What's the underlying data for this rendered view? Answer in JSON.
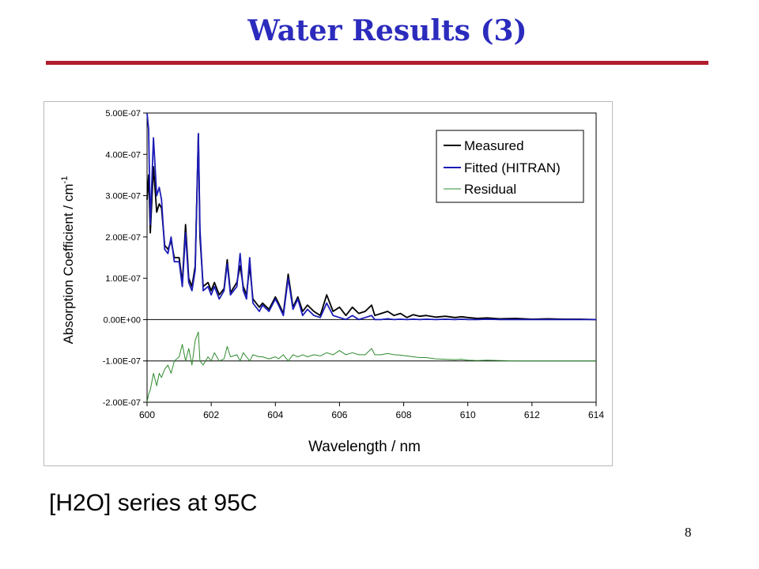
{
  "slide": {
    "title": "Water Results (3)",
    "caption": "[H2O] series at 95C",
    "page_number": "8",
    "colors": {
      "title": "#2b2bbd",
      "rule": "#b01e2d"
    }
  },
  "chart_data": {
    "type": "line",
    "title": "",
    "xlabel": "Wavelength / nm",
    "ylabel": "Absorption Coefficient / cm",
    "ylabel_superscript": "-1",
    "xlim": [
      600,
      614
    ],
    "ylim": [
      -2e-07,
      5e-07
    ],
    "x_ticks": [
      600,
      602,
      604,
      606,
      608,
      610,
      612,
      614
    ],
    "x_tick_labels": [
      "600",
      "602",
      "604",
      "606",
      "608",
      "610",
      "612",
      "614"
    ],
    "y_ticks": [
      5e-07,
      4e-07,
      3e-07,
      2e-07,
      1e-07,
      0,
      -1e-07,
      -2e-07
    ],
    "y_tick_labels": [
      "5.00E-07",
      "4.00E-07",
      "3.00E-07",
      "2.00E-07",
      "1.00E-07",
      "0.00E+00",
      "-1.00E-07",
      "-2.00E-07"
    ],
    "grid": "horizontal lines at 0.00E+00 and -1.00E-07",
    "legend_position": "top-right",
    "series": [
      {
        "name": "Measured",
        "color": "#000000",
        "x": [
          600.0,
          600.05,
          600.1,
          600.2,
          600.3,
          600.38,
          600.45,
          600.55,
          600.65,
          600.75,
          600.85,
          601.0,
          601.1,
          601.2,
          601.3,
          601.4,
          601.5,
          601.6,
          601.65,
          601.75,
          601.9,
          602.0,
          602.1,
          602.25,
          602.4,
          602.5,
          602.6,
          602.8,
          602.9,
          603.0,
          603.1,
          603.2,
          603.3,
          603.5,
          603.6,
          603.8,
          604.0,
          604.1,
          604.25,
          604.4,
          604.55,
          604.7,
          604.85,
          605.0,
          605.2,
          605.4,
          605.6,
          605.8,
          606.0,
          606.2,
          606.4,
          606.6,
          606.8,
          607.0,
          607.1,
          607.3,
          607.5,
          607.7,
          607.9,
          608.1,
          608.3,
          608.5,
          608.7,
          609.0,
          609.3,
          609.6,
          609.8,
          610.0,
          610.3,
          610.6,
          611.0,
          611.5,
          612.0,
          612.5,
          613.0,
          613.5,
          614.0
        ],
        "y": [
          2.9e-07,
          3.5e-07,
          2.1e-07,
          3.7e-07,
          2.6e-07,
          2.8e-07,
          2.7e-07,
          1.8e-07,
          1.7e-07,
          1.9e-07,
          1.5e-07,
          1.5e-07,
          9e-08,
          2.3e-07,
          1e-07,
          8e-08,
          1.3e-07,
          4.5e-07,
          2e-07,
          8e-08,
          9e-08,
          7e-08,
          9e-08,
          6e-08,
          7.5e-08,
          1.45e-07,
          6.5e-08,
          9e-08,
          1.3e-07,
          8e-08,
          6e-08,
          1.3e-07,
          5e-08,
          3e-08,
          4e-08,
          2.5e-08,
          5.5e-08,
          4e-08,
          1.5e-08,
          1.1e-07,
          3e-08,
          5.5e-08,
          2e-08,
          3.5e-08,
          2e-08,
          1e-08,
          6e-08,
          2e-08,
          3e-08,
          1e-08,
          3e-08,
          1.5e-08,
          2e-08,
          3.5e-08,
          1e-08,
          1.5e-08,
          2e-08,
          1e-08,
          1.5e-08,
          5e-09,
          1.2e-08,
          8e-09,
          1e-08,
          6e-09,
          8e-09,
          5e-09,
          7e-09,
          5e-09,
          3e-09,
          4e-09,
          2e-09,
          3e-09,
          1e-09,
          2e-09,
          1e-09,
          1e-09,
          0.0
        ]
      },
      {
        "name": "Fitted (HITRAN)",
        "color": "#1c1cb8",
        "x": [
          600.0,
          600.05,
          600.1,
          600.2,
          600.3,
          600.38,
          600.45,
          600.55,
          600.65,
          600.75,
          600.85,
          601.0,
          601.1,
          601.2,
          601.3,
          601.4,
          601.5,
          601.6,
          601.65,
          601.75,
          601.9,
          602.0,
          602.1,
          602.25,
          602.4,
          602.5,
          602.6,
          602.8,
          602.9,
          603.0,
          603.1,
          603.2,
          603.3,
          603.5,
          603.6,
          603.8,
          604.0,
          604.1,
          604.25,
          604.4,
          604.55,
          604.7,
          604.85,
          605.0,
          605.2,
          605.4,
          605.6,
          605.8,
          606.0,
          606.2,
          606.4,
          606.6,
          606.8,
          607.0,
          607.1,
          607.3,
          607.5,
          607.7,
          607.9,
          608.1,
          608.3,
          608.5,
          608.7,
          609.0,
          609.3,
          609.6,
          609.8,
          610.0,
          610.3,
          610.6,
          611.0,
          611.5,
          612.0,
          612.5,
          613.0,
          613.5,
          614.0
        ],
        "y": [
          5e-07,
          4.6e-07,
          2.3e-07,
          4.4e-07,
          3e-07,
          3.2e-07,
          2.9e-07,
          1.7e-07,
          1.6e-07,
          2e-07,
          1.4e-07,
          1.4e-07,
          8e-08,
          2.1e-07,
          9e-08,
          7e-08,
          1.2e-07,
          4.5e-07,
          2.2e-07,
          7e-08,
          8e-08,
          6e-08,
          8e-08,
          5e-08,
          7e-08,
          1.35e-07,
          6e-08,
          8e-08,
          1.6e-07,
          7e-08,
          5e-08,
          1.5e-07,
          4e-08,
          2e-08,
          3.5e-08,
          2e-08,
          5e-08,
          3.5e-08,
          1e-08,
          1e-07,
          2.5e-08,
          5e-08,
          1e-08,
          2.5e-08,
          1e-08,
          5e-09,
          4e-08,
          1e-08,
          5e-09,
          0.0,
          1e-08,
          0.0,
          5e-09,
          1e-08,
          0.0,
          0.0,
          2e-09,
          0.0,
          1e-09,
          0.0,
          1e-09,
          0.0,
          1e-09,
          0.0,
          1e-09,
          0.0,
          1e-09,
          0.0,
          0.0,
          1e-09,
          0.0,
          0.0,
          0.0,
          0.0,
          0.0,
          0.0,
          0.0
        ]
      },
      {
        "name": "Residual",
        "color": "#2e8b2e",
        "x": [
          600.0,
          600.05,
          600.1,
          600.2,
          600.3,
          600.38,
          600.45,
          600.55,
          600.65,
          600.75,
          600.85,
          601.0,
          601.1,
          601.2,
          601.3,
          601.4,
          601.5,
          601.6,
          601.65,
          601.75,
          601.9,
          602.0,
          602.1,
          602.25,
          602.4,
          602.5,
          602.6,
          602.8,
          602.9,
          603.0,
          603.1,
          603.2,
          603.3,
          603.5,
          603.6,
          603.8,
          604.0,
          604.1,
          604.25,
          604.4,
          604.55,
          604.7,
          604.85,
          605.0,
          605.2,
          605.4,
          605.6,
          605.8,
          606.0,
          606.2,
          606.4,
          606.6,
          606.8,
          607.0,
          607.1,
          607.3,
          607.5,
          607.7,
          607.9,
          608.1,
          608.3,
          608.5,
          608.7,
          609.0,
          609.3,
          609.6,
          609.8,
          610.0,
          610.3,
          610.6,
          611.0,
          611.5,
          612.0,
          612.5,
          613.0,
          613.5,
          614.0
        ],
        "y": [
          -2e-07,
          -1.8e-07,
          -1.7e-07,
          -1.3e-07,
          -1.6e-07,
          -1.3e-07,
          -1.4e-07,
          -1.2e-07,
          -1.1e-07,
          -1.3e-07,
          -1e-07,
          -9e-08,
          -6e-08,
          -1e-07,
          -7e-08,
          -1.1e-07,
          -5e-08,
          -3e-08,
          -1e-07,
          -1.1e-07,
          -9e-08,
          -1e-07,
          -8e-08,
          -1e-07,
          -9.5e-08,
          -6.5e-08,
          -9e-08,
          -8.5e-08,
          -1e-07,
          -8e-08,
          -9e-08,
          -1e-07,
          -8.5e-08,
          -9e-08,
          -9e-08,
          -9.5e-08,
          -9e-08,
          -9.5e-08,
          -8.5e-08,
          -1e-07,
          -8.5e-08,
          -9e-08,
          -8.5e-08,
          -9e-08,
          -8.5e-08,
          -8.8e-08,
          -8e-08,
          -8.5e-08,
          -7.5e-08,
          -8.5e-08,
          -8e-08,
          -8.5e-08,
          -8.5e-08,
          -7e-08,
          -8.5e-08,
          -8.5e-08,
          -8.2e-08,
          -8.5e-08,
          -8.6e-08,
          -8.8e-08,
          -9e-08,
          -9.2e-08,
          -9.2e-08,
          -9.5e-08,
          -9.6e-08,
          -9.7e-08,
          -9.6e-08,
          -9.8e-08,
          -9.9e-08,
          -9.8e-08,
          -9.9e-08,
          -1e-07,
          -1e-07,
          -1e-07,
          -1e-07,
          -1e-07,
          -1e-07
        ]
      }
    ]
  }
}
